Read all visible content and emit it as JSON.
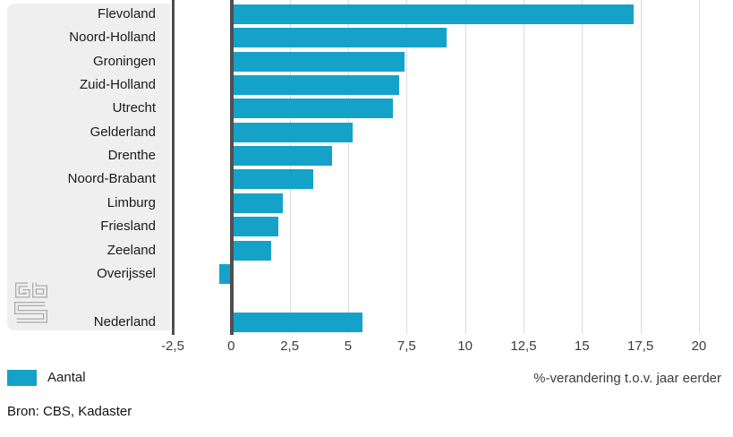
{
  "chart_data": {
    "type": "bar",
    "orientation": "horizontal",
    "series_name": "Aantal",
    "categories": [
      "Flevoland",
      "Noord-Holland",
      "Groningen",
      "Zuid-Holland",
      "Utrecht",
      "Gelderland",
      "Drenthe",
      "Noord-Brabant",
      "Limburg",
      "Friesland",
      "Zeeland",
      "Overijssel"
    ],
    "values": [
      17.2,
      9.2,
      7.4,
      7.2,
      6.9,
      5.2,
      4.3,
      3.5,
      2.2,
      2.0,
      1.7,
      -0.5
    ],
    "summary_row": {
      "category": "Nederland",
      "value": 5.6
    },
    "xlabel": "%-verandering t.o.v. jaar eerder",
    "xlim": [
      -2.5,
      20
    ],
    "x_ticks": [
      -2.5,
      0,
      2.5,
      5,
      7.5,
      10,
      12.5,
      15,
      17.5,
      20
    ],
    "x_tick_labels": [
      "-2,5",
      "0",
      "2,5",
      "5",
      "7,5",
      "10",
      "12,5",
      "15",
      "17,5",
      "20"
    ],
    "grid": true,
    "legend_position": "bottom-left"
  },
  "legend": {
    "label": "Aantal",
    "color": "#15a2c8"
  },
  "source_text": "Bron: CBS, Kadaster",
  "logo": {
    "name": "cbs-logo"
  },
  "colors": {
    "bar": "#15a2c8",
    "axis_dark": "#4f4f51",
    "gridline": "#dcdcdc",
    "panel_bg": "#efefef",
    "text": "#1a1a1a"
  }
}
